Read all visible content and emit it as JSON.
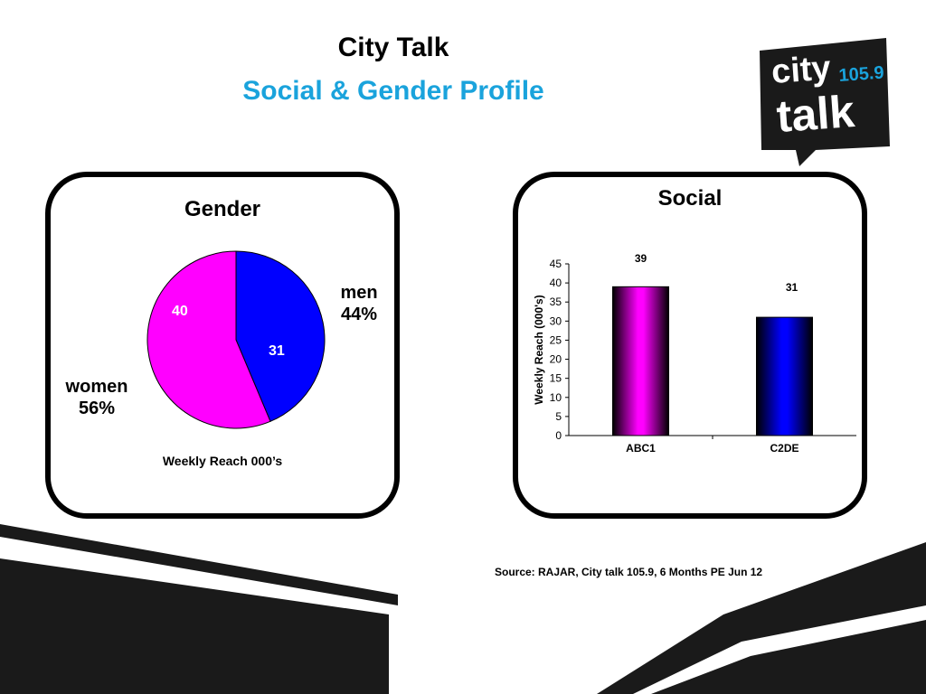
{
  "title_line1": "City Talk",
  "title_line2": "Social & Gender Profile",
  "logo": {
    "word1": "city",
    "word2": "talk",
    "frequency": "105.9"
  },
  "source": "Source: RAJAR, City talk 105.9, 6 Months PE Jun 12",
  "colors": {
    "accent": "#1aa3dc",
    "magenta": "#ff00ff",
    "blue": "#0000ff"
  },
  "chart_data": [
    {
      "type": "pie",
      "title": "Gender",
      "caption": "Weekly Reach 000’s",
      "slices": [
        {
          "label": "men",
          "percent_label": "44%",
          "value": 31,
          "color": "#0000ff"
        },
        {
          "label": "women",
          "percent_label": "56%",
          "value": 40,
          "color": "#ff00ff"
        }
      ]
    },
    {
      "type": "bar",
      "title": "Social",
      "categories": [
        "ABC1",
        "C2DE"
      ],
      "values": [
        39,
        31
      ],
      "colors": [
        "#ff00ff",
        "#0000ff"
      ],
      "ylabel": "Weekly Reach (000's)",
      "ylim": [
        0,
        45
      ],
      "yticks": [
        0,
        5,
        10,
        15,
        20,
        25,
        30,
        35,
        40,
        45
      ]
    }
  ]
}
